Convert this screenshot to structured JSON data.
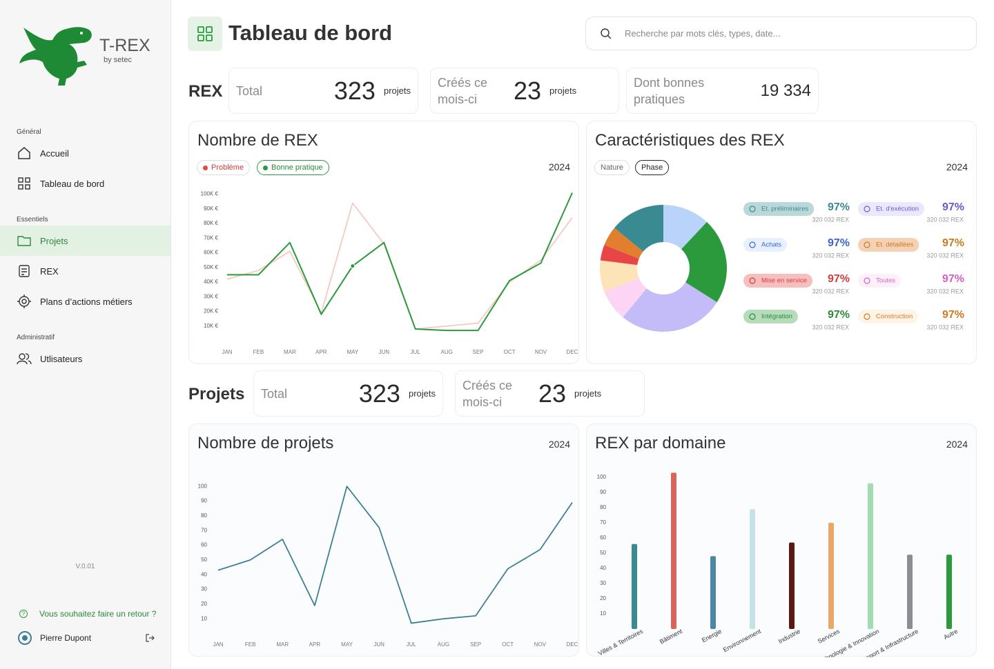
{
  "sidebar": {
    "brand": "T-REX",
    "brand_sub": "by setec",
    "sections": [
      {
        "title": "Général",
        "items": [
          "Accueil",
          "Tableau de bord"
        ]
      },
      {
        "title": "Essentiels",
        "items": [
          "Projets",
          "REX",
          "Plans d’actions métiers"
        ]
      },
      {
        "title": "Administratif",
        "items": [
          "Utlisateurs"
        ]
      }
    ],
    "version": "V.0.01",
    "feedback": "Vous souhaitez faire un retour ?",
    "user": "Pierre Dupont"
  },
  "header": {
    "title": "Tableau de bord",
    "search_placeholder": "Recherche par mots clés, types, date..."
  },
  "rex_summary": {
    "title": "REX",
    "total_label": "Total",
    "total": 323,
    "total_unit": "projets",
    "month_label": "Créés ce mois-ci",
    "month": 23,
    "month_unit": "projets",
    "good_label": "Dont bonnes pratiques",
    "good": "19 334"
  },
  "rex_chart": {
    "title": "Nombre de REX",
    "year": 2024,
    "categories": [
      "JAN",
      "FEB",
      "MAR",
      "APR",
      "MAY",
      "JUN",
      "JUL",
      "AUG",
      "SEP",
      "OCT",
      "NOV",
      "DEC"
    ],
    "ylim": [
      0,
      105000
    ],
    "yticks": [
      {
        "value": 10000,
        "label": "10K €"
      },
      {
        "value": 20000,
        "label": "20K €"
      },
      {
        "value": 30000,
        "label": "30K €"
      },
      {
        "value": 40000,
        "label": "40K €"
      },
      {
        "value": 50000,
        "label": "50K €"
      },
      {
        "value": 60000,
        "label": "60K €"
      },
      {
        "value": 70000,
        "label": "70K €"
      },
      {
        "value": 80000,
        "label": "80K €"
      },
      {
        "value": 90000,
        "label": "90K €"
      },
      {
        "value": 100000,
        "label": "100K €"
      }
    ],
    "series": [
      {
        "name": "Problème",
        "color": "#f6c9c1",
        "values": [
          42000,
          48000,
          61000,
          19000,
          94000,
          66000,
          8000,
          10000,
          12000,
          40000,
          55000,
          84000
        ]
      },
      {
        "name": "Bonne pratique",
        "color": "#2b9a3c",
        "values": [
          45000,
          45000,
          67000,
          18000,
          51000,
          67000,
          8000,
          7000,
          7000,
          41000,
          53000,
          101000
        ]
      }
    ]
  },
  "rex_characteristics": {
    "title": "Caractéristiques des REX",
    "year": 2024,
    "filters": [
      "Nature",
      "Phase"
    ],
    "segments": [
      {
        "name": "Achats",
        "color": "#b9d3fb",
        "text_color": "#3a64cf",
        "share": 12,
        "percent": "97%",
        "count": "320 032 REX"
      },
      {
        "name": "Intégration",
        "color": "#2b9a3c",
        "text_color": "#2b8a3a",
        "share": 22,
        "percent": "97%",
        "count": "320 032 REX"
      },
      {
        "name": "Et. d'exécution",
        "color": "#c4bcf8",
        "text_color": "#6b58d2",
        "share": 27,
        "percent": "97%",
        "count": "320 032 REX"
      },
      {
        "name": "Toutes",
        "color": "#fcd4f4",
        "text_color": "#d45fc4",
        "share": 8,
        "percent": "97%",
        "count": "320 032 REX"
      },
      {
        "name": "Construction",
        "color": "#fde3b8",
        "text_color": "#d47a1f",
        "share": 8,
        "percent": "97%",
        "count": "320 032 REX"
      },
      {
        "name": "Mise en service",
        "color": "#e84646",
        "text_color": "#d63c3c",
        "share": 4,
        "percent": "97%",
        "count": "320 032 REX"
      },
      {
        "name": "Et. détaillées",
        "color": "#e27f2f",
        "text_color": "#c97a1e",
        "share": 5,
        "percent": "97%",
        "count": "320 032 REX"
      },
      {
        "name": "Et. préliminaires",
        "color": "#3a8b91",
        "text_color": "#3a8b91",
        "share": 14,
        "percent": "97%",
        "count": "320 032 REX"
      }
    ]
  },
  "projects_summary": {
    "title": "Projets",
    "total_label": "Total",
    "total": 323,
    "total_unit": "projets",
    "month_label": "Créés ce mois-ci",
    "month": 23,
    "month_unit": "projets"
  },
  "projects_chart": {
    "title": "Nombre de projets",
    "year": 2024,
    "color": "#3d7f96",
    "categories": [
      "JAN",
      "FEB",
      "MAR",
      "APR",
      "MAY",
      "JUN",
      "JUL",
      "AUG",
      "SEP",
      "OCT",
      "NOV",
      "DEC"
    ],
    "values": [
      43,
      50,
      64,
      19,
      100,
      72,
      7,
      10,
      12,
      44,
      57,
      89
    ],
    "ylim": [
      0,
      105
    ],
    "yticks": [
      10,
      20,
      30,
      40,
      50,
      60,
      70,
      80,
      90,
      100
    ]
  },
  "domain_chart": {
    "title": "REX par domaine",
    "year": 2024,
    "categories": [
      "Villes & Territoires",
      "Bâtiment",
      "Energie",
      "Environnement",
      "Industrie",
      "Services",
      "Technologie & Innovation",
      "Transport & Infrastructure",
      "Autre"
    ],
    "values": [
      56,
      103,
      48,
      79,
      57,
      70,
      96,
      49,
      49
    ],
    "colors": [
      "#3a8b91",
      "#d9645a",
      "#4a86a6",
      "#c8e0e8",
      "#5a1a10",
      "#e8a86a",
      "#a0dcb2",
      "#8c8c92",
      "#2b9a3c"
    ],
    "ylim": [
      0,
      105
    ],
    "yticks": [
      10,
      20,
      30,
      40,
      50,
      60,
      70,
      80,
      90,
      100
    ]
  }
}
